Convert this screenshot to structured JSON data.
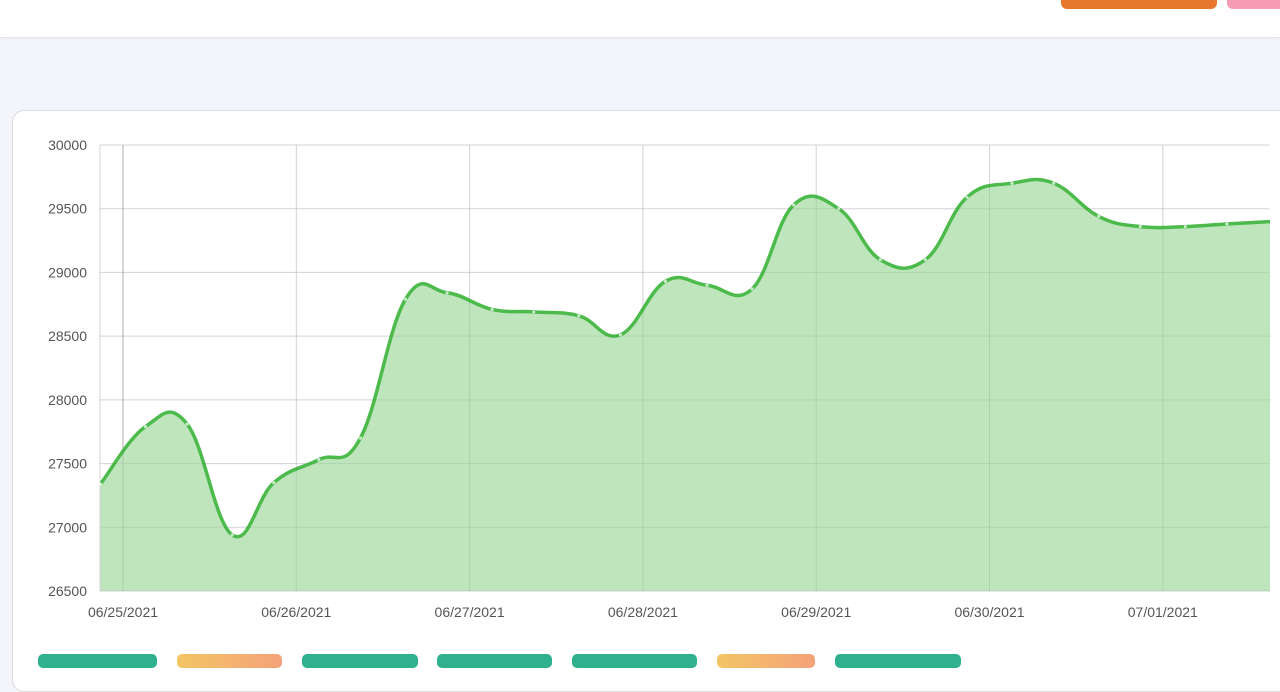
{
  "chart_data": {
    "type": "area",
    "title": "",
    "xlabel": "",
    "ylabel": "",
    "ylim": [
      26500,
      30000
    ],
    "yticks": [
      26500,
      27000,
      27500,
      28000,
      28500,
      29000,
      29500,
      30000
    ],
    "xticks": [
      "06/25/2021",
      "06/26/2021",
      "06/27/2021",
      "06/28/2021",
      "06/29/2021",
      "06/30/2021",
      "07/01/2021"
    ],
    "x_tick_days": [
      0,
      1,
      2,
      3,
      4,
      5,
      6
    ],
    "grid": true,
    "series": [
      {
        "color": "#4cbb4c",
        "fill": "#b4e0b1",
        "points": [
          {
            "x": -0.13,
            "y": 27340
          },
          {
            "x": 0.13,
            "y": 27790
          },
          {
            "x": 0.37,
            "y": 27810
          },
          {
            "x": 0.63,
            "y": 26940
          },
          {
            "x": 0.87,
            "y": 27350
          },
          {
            "x": 1.13,
            "y": 27530
          },
          {
            "x": 1.37,
            "y": 27700
          },
          {
            "x": 1.63,
            "y": 28790
          },
          {
            "x": 1.87,
            "y": 28840
          },
          {
            "x": 2.13,
            "y": 28710
          },
          {
            "x": 2.37,
            "y": 28690
          },
          {
            "x": 2.63,
            "y": 28660
          },
          {
            "x": 2.87,
            "y": 28510
          },
          {
            "x": 3.13,
            "y": 28930
          },
          {
            "x": 3.37,
            "y": 28900
          },
          {
            "x": 3.63,
            "y": 28870
          },
          {
            "x": 3.87,
            "y": 29530
          },
          {
            "x": 4.13,
            "y": 29500
          },
          {
            "x": 4.37,
            "y": 29100
          },
          {
            "x": 4.63,
            "y": 29100
          },
          {
            "x": 4.87,
            "y": 29590
          },
          {
            "x": 5.13,
            "y": 29700
          },
          {
            "x": 5.37,
            "y": 29700
          },
          {
            "x": 5.63,
            "y": 29440
          },
          {
            "x": 5.87,
            "y": 29360
          },
          {
            "x": 6.13,
            "y": 29360
          },
          {
            "x": 6.37,
            "y": 29380
          },
          {
            "x": 6.63,
            "y": 29400
          }
        ]
      }
    ]
  }
}
